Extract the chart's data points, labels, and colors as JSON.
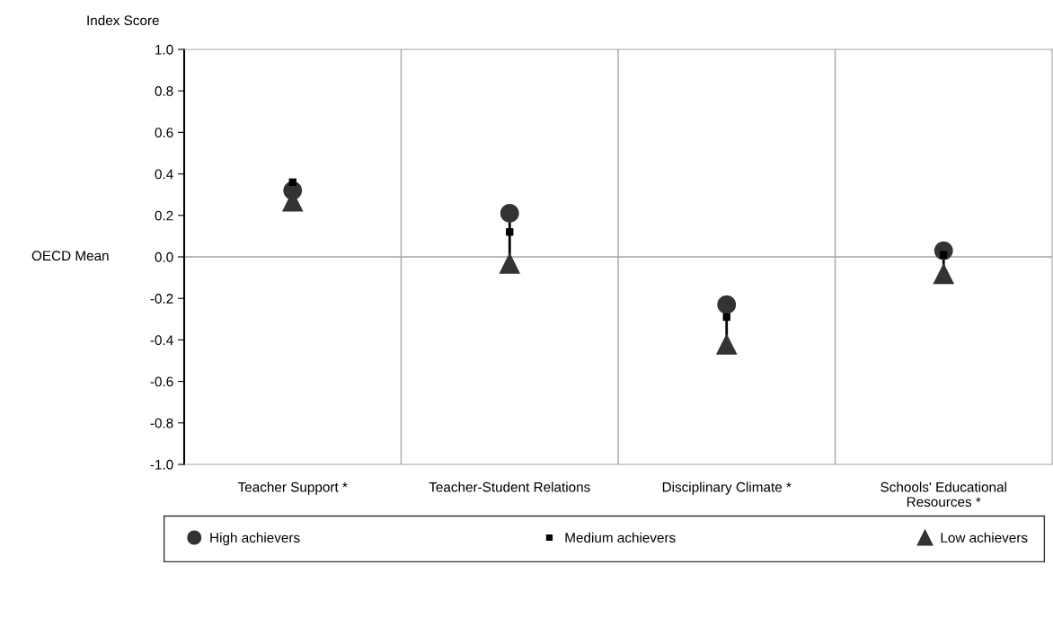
{
  "chart_data": {
    "type": "scatter",
    "ylabel": "Index Score",
    "categories": [
      "Teacher Support *",
      "Teacher-Student Relations",
      "Disciplinary Climate *",
      "Schools' Educational Resources *"
    ],
    "series": [
      {
        "name": "High achievers",
        "color": "#333333",
        "marker": "circle",
        "values": [
          0.32,
          0.21,
          -0.23,
          0.03
        ]
      },
      {
        "name": "Medium achievers",
        "color": "#000000",
        "marker": "square",
        "values": [
          0.36,
          0.12,
          -0.29,
          0.01
        ]
      },
      {
        "name": "Low achievers",
        "color": "#333333",
        "marker": "triangle",
        "values": [
          0.27,
          -0.03,
          -0.42,
          -0.08
        ]
      }
    ],
    "ylim": [
      -1.0,
      1.0
    ],
    "yticks": [
      {
        "value": -1.0,
        "label": "-1.0"
      },
      {
        "value": -0.8,
        "label": "-0.8"
      },
      {
        "value": -0.6,
        "label": "-0.6"
      },
      {
        "value": -0.4,
        "label": "-0.4"
      },
      {
        "value": -0.2,
        "label": "-0.2"
      },
      {
        "value": 0.0,
        "label": "0.0"
      },
      {
        "value": 0.2,
        "label": "0.2"
      },
      {
        "value": 0.4,
        "label": "0.4"
      },
      {
        "value": 0.6,
        "label": "0.6"
      },
      {
        "value": 0.8,
        "label": "0.8"
      },
      {
        "value": 1.0,
        "label": "1.0"
      }
    ],
    "ref_lines": [
      {
        "axis": "y",
        "value": 0.0,
        "color": "#a6a6a6"
      }
    ],
    "annotations": [
      "OECD Mean"
    ],
    "grid": "x",
    "legend": "bottom"
  }
}
